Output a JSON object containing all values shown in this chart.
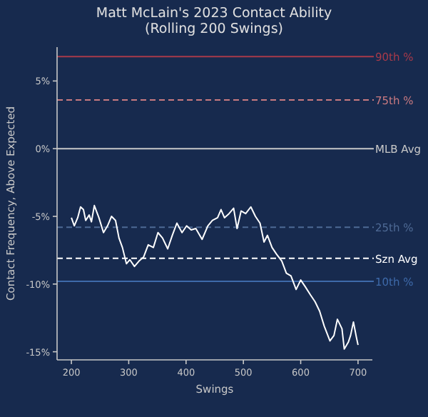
{
  "chart_data": {
    "type": "line",
    "title": "Matt McLain's 2023 Contact Ability",
    "subtitle": "(Rolling 200 Swings)",
    "xlabel": "Swings",
    "ylabel": "Contact Frequency, Above Expected",
    "xlim": [
      175,
      725
    ],
    "xticks": [
      200,
      300,
      400,
      500,
      600,
      700
    ],
    "ylim": [
      -15.6,
      7.5
    ],
    "yticks": [
      {
        "value": -15,
        "label": "-15%"
      },
      {
        "value": -10,
        "label": "-10%"
      },
      {
        "value": -5,
        "label": "-5%"
      },
      {
        "value": 0,
        "label": "0%"
      },
      {
        "value": 5,
        "label": "5%"
      }
    ],
    "grid": false,
    "line_style": "solid",
    "marker": "none",
    "ref_lines": [
      {
        "axis": "y",
        "value": 6.8,
        "label": "90th %",
        "color": "#a83a4a",
        "line_style": "solid"
      },
      {
        "axis": "y",
        "value": 3.6,
        "label": "75th %",
        "color": "#c97a80",
        "line_style": "dashed"
      },
      {
        "axis": "y",
        "value": 0,
        "label": "MLB Avg",
        "color": "#c8c8c8",
        "line_style": "solid"
      },
      {
        "axis": "y",
        "value": -5.8,
        "label": "25th %",
        "color": "#4e6a95",
        "line_style": "dashed"
      },
      {
        "axis": "y",
        "value": -8.1,
        "label": "Szn Avg",
        "color": "#ffffff",
        "line_style": "dashed"
      },
      {
        "axis": "y",
        "value": -9.8,
        "label": "10th %",
        "color": "#3e6aaa",
        "line_style": "solid"
      }
    ],
    "x": [
      200,
      205,
      211,
      216,
      221,
      225,
      231,
      235,
      240,
      248,
      256,
      263,
      270,
      277,
      283,
      289,
      296,
      302,
      310,
      318,
      326,
      334,
      343,
      351,
      359,
      368,
      376,
      384,
      393,
      401,
      409,
      417,
      428,
      438,
      446,
      455,
      461,
      467,
      475,
      483,
      489,
      496,
      504,
      513,
      521,
      529,
      536,
      542,
      550,
      558,
      567,
      575,
      583,
      592,
      600,
      608,
      617,
      625,
      633,
      641,
      651,
      658,
      664,
      672,
      676,
      683,
      687,
      692,
      697,
      700
    ],
    "series": [
      {
        "color": "#ffffff",
        "values": [
          -5.1,
          -5.7,
          -5.1,
          -4.3,
          -4.5,
          -5.3,
          -4.9,
          -5.4,
          -4.2,
          -5.1,
          -6.2,
          -5.7,
          -5.0,
          -5.3,
          -6.6,
          -7.3,
          -8.5,
          -8.2,
          -8.7,
          -8.3,
          -8.0,
          -7.1,
          -7.3,
          -6.2,
          -6.6,
          -7.4,
          -6.4,
          -5.5,
          -6.2,
          -5.7,
          -6.0,
          -5.9,
          -6.7,
          -5.7,
          -5.3,
          -5.1,
          -4.5,
          -5.1,
          -4.8,
          -4.4,
          -5.9,
          -4.6,
          -4.8,
          -4.3,
          -5.0,
          -5.5,
          -6.9,
          -6.4,
          -7.3,
          -7.8,
          -8.3,
          -9.2,
          -9.4,
          -10.4,
          -9.7,
          -10.2,
          -10.8,
          -11.3,
          -12.0,
          -13.1,
          -14.2,
          -13.8,
          -12.6,
          -13.3,
          -14.8,
          -14.3,
          -13.8,
          -12.8,
          -13.9,
          -14.5
        ]
      }
    ]
  }
}
